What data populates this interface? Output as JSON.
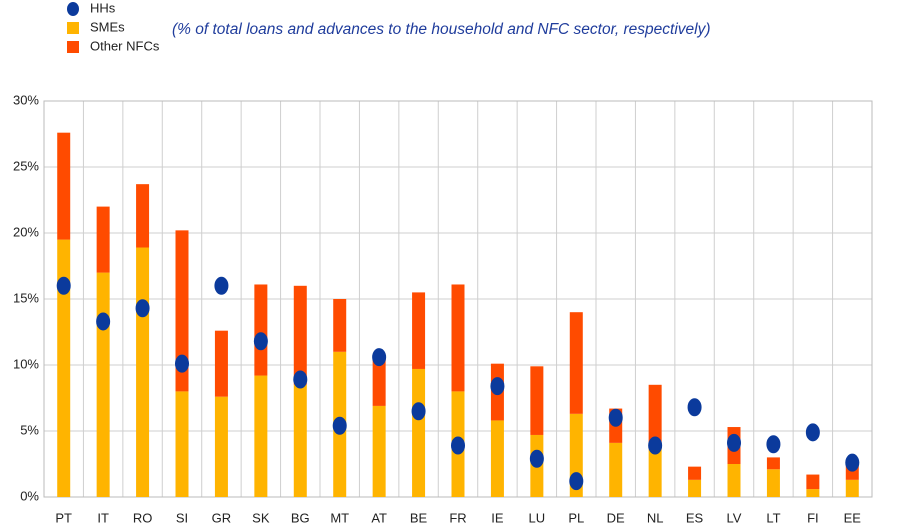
{
  "chart_data": {
    "type": "bar",
    "subtitle": "(% of total loans and advances to the household and NFC sector, respectively)",
    "categories": [
      "PT",
      "IT",
      "RO",
      "SI",
      "GR",
      "SK",
      "BG",
      "MT",
      "AT",
      "BE",
      "FR",
      "IE",
      "LU",
      "PL",
      "DE",
      "NL",
      "ES",
      "LV",
      "LT",
      "FI",
      "EE"
    ],
    "series": [
      {
        "name": "HHs",
        "type": "scatter",
        "color": "#0b3a9c",
        "values": [
          16.0,
          13.3,
          14.3,
          10.1,
          16.0,
          11.8,
          8.9,
          5.4,
          10.6,
          6.5,
          3.9,
          8.4,
          2.9,
          1.2,
          6.0,
          3.9,
          6.8,
          4.1,
          4.0,
          4.9,
          2.6
        ]
      },
      {
        "name": "SMEs",
        "type": "bar",
        "color": "#ffb400",
        "values": [
          19.5,
          17.0,
          18.9,
          8.0,
          7.6,
          9.2,
          8.5,
          11.0,
          6.9,
          9.7,
          8.0,
          5.8,
          4.7,
          6.3,
          4.1,
          3.8,
          1.3,
          2.5,
          2.1,
          0.6,
          1.3
        ]
      },
      {
        "name": "Other NFCs",
        "type": "bar",
        "color": "#ff4b00",
        "values": [
          8.1,
          5.0,
          4.8,
          12.2,
          5.0,
          6.9,
          7.5,
          4.0,
          3.6,
          5.8,
          8.1,
          4.3,
          5.2,
          7.7,
          2.6,
          4.7,
          1.0,
          2.8,
          0.9,
          1.1,
          1.2
        ]
      }
    ],
    "ylim": [
      0,
      30
    ],
    "yticks": [
      {
        "value": 0,
        "label": "0%"
      },
      {
        "value": 5,
        "label": "5%"
      },
      {
        "value": 10,
        "label": "10%"
      },
      {
        "value": 15,
        "label": "15%"
      },
      {
        "value": 20,
        "label": "20%"
      },
      {
        "value": 25,
        "label": "25%"
      },
      {
        "value": 30,
        "label": "30%"
      }
    ],
    "grid": true
  }
}
